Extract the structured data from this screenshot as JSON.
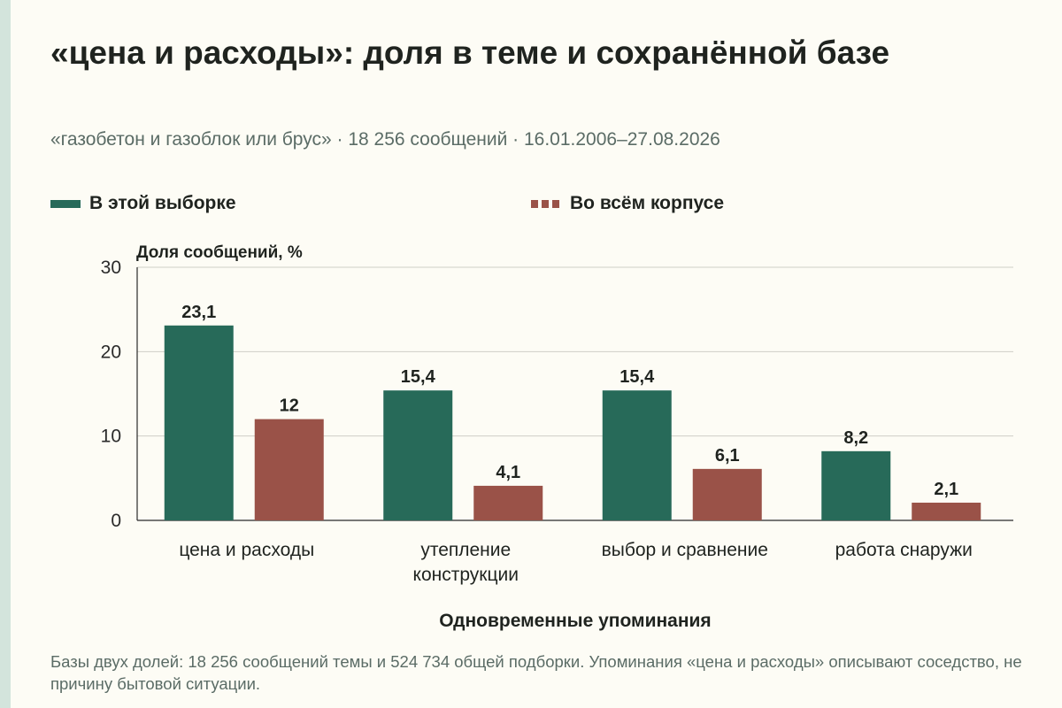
{
  "title": "«цена и расходы»: доля в теме и сохранённой базе",
  "subtitle": "«газобетон и газоблок или брус» · 18 256 сообщений · 16.01.2006–27.08.2026",
  "note": "Базы двух долей: 18 256 сообщений темы и 524 734 общей подборки. Упоминания «цена и расходы» описывают соседство, не причину бытовой ситуации.",
  "colors": {
    "series_sample": "#276a59",
    "series_corpus": "#9a5248",
    "grid": "#cfcfc7",
    "axis": "#2a2a2a",
    "background": "#fdfcf5"
  },
  "chart_data": {
    "type": "bar",
    "categories": [
      [
        "цена и расходы"
      ],
      [
        "утепление",
        "конструкции"
      ],
      [
        "выбор и сравнение"
      ],
      [
        "работа снаружи"
      ]
    ],
    "series": [
      {
        "name": "В этой выборке",
        "values": [
          23.1,
          15.4,
          15.4,
          8.2
        ],
        "labels": [
          "23,1",
          "15,4",
          "15,4",
          "8,2"
        ]
      },
      {
        "name": "Во всём корпусе",
        "values": [
          12,
          4.1,
          6.1,
          2.1
        ],
        "labels": [
          "12",
          "4,1",
          "6,1",
          "2,1"
        ]
      }
    ],
    "ylabel": "Доля сообщений, %",
    "xlabel": "Одновременные упоминания",
    "ylim": [
      0,
      30
    ],
    "yticks": [
      0,
      10,
      20,
      30
    ],
    "grid": true,
    "legend_position": "top"
  }
}
